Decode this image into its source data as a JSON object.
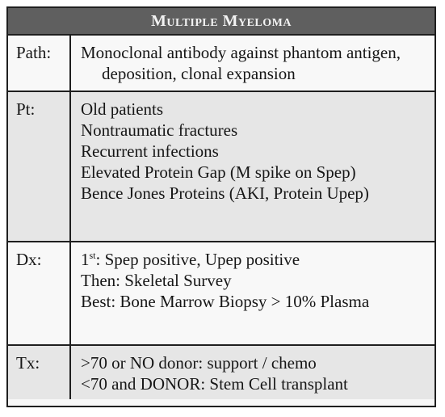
{
  "title": "Multiple Myeloma",
  "rows": [
    {
      "label": "Path:",
      "lines": [
        "Monoclonal antibody against phantom antigen, deposition, clonal expansion"
      ]
    },
    {
      "label": "Pt:",
      "lines": [
        "Old patients",
        "Nontraumatic fractures",
        "Recurrent infections",
        "Elevated Protein Gap (M spike on Spep)",
        "Bence Jones Proteins (AKI, Protein Upep)"
      ]
    },
    {
      "label": "Dx:",
      "first_prefix": "1",
      "first_sup": "st",
      "first_rest": ": Spep positive, Upep positive",
      "lines": [
        "Then: Skeletal Survey",
        "Best: Bone Marrow Biopsy > 10% Plasma"
      ]
    },
    {
      "label": "Tx:",
      "lines": [
        ">70 or NO donor: support / chemo",
        "<70 and DONOR: Stem Cell transplant"
      ]
    }
  ]
}
